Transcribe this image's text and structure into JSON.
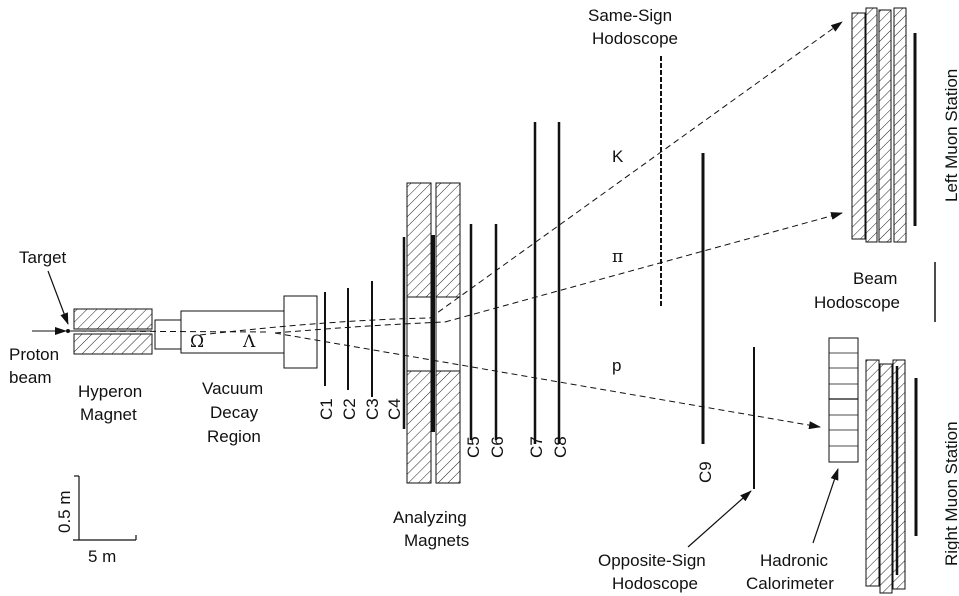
{
  "labels": {
    "target": "Target",
    "proton_beam_1": "Proton",
    "proton_beam_2": "beam",
    "hyperon_magnet_1": "Hyperon",
    "hyperon_magnet_2": "Magnet",
    "omega": "Ω",
    "lambda": "Λ",
    "vacuum_1": "Vacuum",
    "vacuum_2": "Decay",
    "vacuum_3": "Region",
    "c1": "C1",
    "c2": "C2",
    "c3": "C3",
    "c4": "C4",
    "c5": "C5",
    "c6": "C6",
    "c7": "C7",
    "c8": "C8",
    "c9": "C9",
    "analyzing_1": "Analyzing",
    "analyzing_2": "Magnets",
    "same_sign_1": "Same-Sign",
    "same_sign_2": "Hodoscope",
    "kaon": "K",
    "pion": "π",
    "proton": "p",
    "beam_hodo_1": "Beam",
    "beam_hodo_2": "Hodoscope",
    "left_muon": "Left Muon Station",
    "right_muon": "Right Muon Station",
    "opposite_1": "Opposite-Sign",
    "opposite_2": "Hodoscope",
    "hadronic_1": "Hadronic",
    "hadronic_2": "Calorimeter",
    "scale_v": "0.5 m",
    "scale_h": "5 m"
  }
}
